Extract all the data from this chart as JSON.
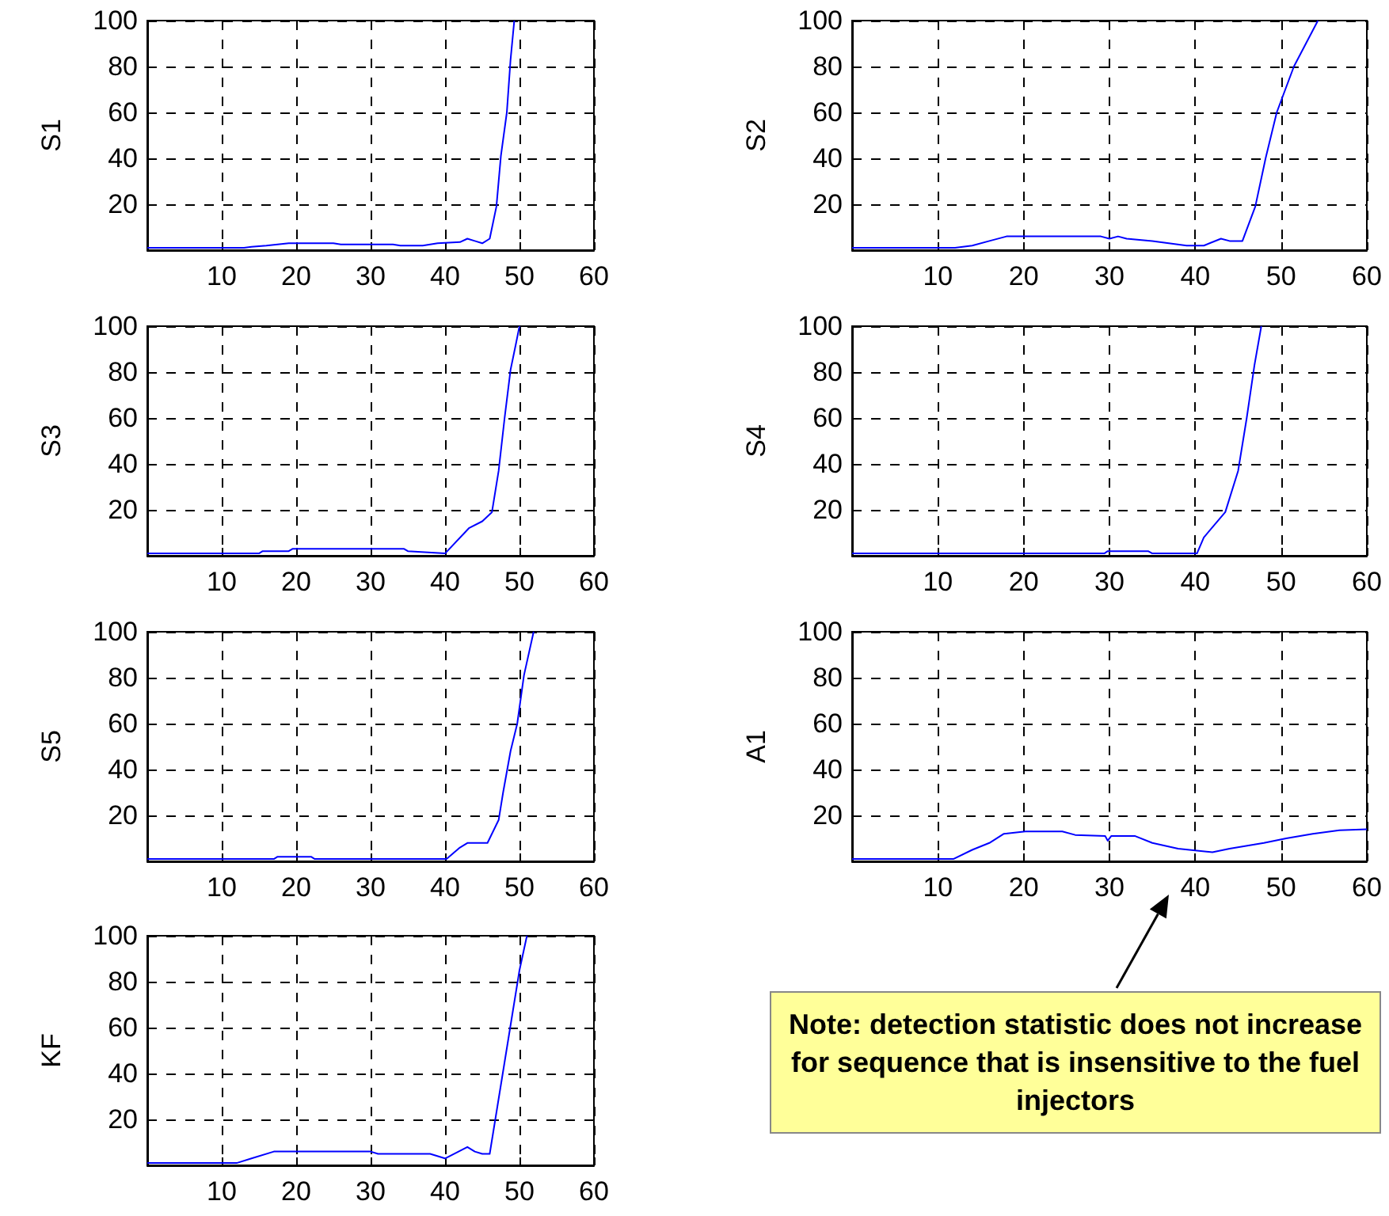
{
  "chart_data": [
    {
      "type": "line",
      "ylabel": "S1",
      "color": "#0000ff",
      "marker": "none",
      "grid": true,
      "xlim": [
        0,
        60
      ],
      "ylim": [
        0,
        100
      ],
      "xticks": [
        10,
        20,
        30,
        40,
        50,
        60
      ],
      "yticks": [
        20,
        40,
        60,
        80,
        100
      ],
      "x": [
        0,
        13,
        14,
        16,
        19,
        25,
        26,
        33,
        34,
        37,
        39,
        42,
        43,
        44,
        45,
        46,
        46.9,
        47.5,
        48.3,
        48.8,
        49.3
      ],
      "values": [
        1,
        1,
        1.5,
        2,
        3,
        3,
        2.5,
        2.5,
        2,
        2,
        3,
        3.5,
        5,
        4,
        3,
        5,
        19,
        41,
        60,
        83,
        100
      ]
    },
    {
      "type": "line",
      "ylabel": "S2",
      "color": "#0000ff",
      "marker": "none",
      "grid": true,
      "xlim": [
        0,
        60
      ],
      "ylim": [
        0,
        100
      ],
      "xticks": [
        10,
        20,
        30,
        40,
        50,
        60
      ],
      "yticks": [
        20,
        40,
        60,
        80,
        100
      ],
      "x": [
        0,
        12,
        14,
        16,
        18,
        29,
        30,
        31,
        32,
        35,
        39,
        41,
        43,
        44,
        45.5,
        47,
        48.2,
        49.5,
        51.5,
        54.3
      ],
      "values": [
        1,
        1,
        2,
        4,
        6,
        6,
        5,
        6,
        5,
        4,
        2,
        2,
        5,
        4,
        4,
        19,
        40,
        60,
        80,
        100
      ]
    },
    {
      "type": "line",
      "ylabel": "S3",
      "color": "#0000ff",
      "marker": "none",
      "grid": true,
      "xlim": [
        0,
        60
      ],
      "ylim": [
        0,
        100
      ],
      "xticks": [
        10,
        20,
        30,
        40,
        50,
        60
      ],
      "yticks": [
        20,
        40,
        60,
        80,
        100
      ],
      "x": [
        0,
        15,
        15.5,
        19,
        19.5,
        34.5,
        35,
        40,
        43.2,
        45,
        46.3,
        47.2,
        48,
        48.8,
        49.5,
        50
      ],
      "values": [
        1,
        1,
        2,
        2,
        3,
        3,
        2,
        1,
        12,
        15,
        19,
        37,
        60,
        81,
        92,
        100
      ]
    },
    {
      "type": "line",
      "ylabel": "S4",
      "color": "#0000ff",
      "marker": "none",
      "grid": true,
      "xlim": [
        0,
        60
      ],
      "ylim": [
        0,
        100
      ],
      "xticks": [
        10,
        20,
        30,
        40,
        50,
        60
      ],
      "yticks": [
        20,
        40,
        60,
        80,
        100
      ],
      "x": [
        0,
        29.4,
        29.8,
        34.5,
        35,
        40.2,
        41,
        43.5,
        45,
        46,
        46.9,
        47.7
      ],
      "values": [
        1,
        1,
        2,
        2,
        1,
        1,
        8,
        19,
        37,
        60,
        83,
        100
      ]
    },
    {
      "type": "line",
      "ylabel": "S5",
      "color": "#0000ff",
      "marker": "none",
      "grid": true,
      "xlim": [
        0,
        60
      ],
      "ylim": [
        0,
        100
      ],
      "xticks": [
        10,
        20,
        30,
        40,
        50,
        60
      ],
      "yticks": [
        20,
        40,
        60,
        80,
        100
      ],
      "x": [
        0,
        17,
        17.5,
        22,
        22.5,
        40.2,
        42,
        43,
        45.7,
        47.2,
        47.8,
        48.8,
        49.7,
        50.6,
        51.9
      ],
      "values": [
        1,
        1,
        2,
        2,
        1,
        1,
        6,
        8,
        8,
        18,
        30,
        48,
        60,
        81,
        100
      ]
    },
    {
      "type": "line",
      "ylabel": "A1",
      "color": "#0000ff",
      "marker": "none",
      "grid": true,
      "xlim": [
        0,
        60
      ],
      "ylim": [
        0,
        100
      ],
      "xticks": [
        10,
        20,
        30,
        40,
        50,
        60
      ],
      "yticks": [
        20,
        40,
        60,
        80,
        100
      ],
      "x": [
        0,
        11.8,
        14,
        16,
        17.7,
        20.2,
        24.5,
        26,
        29.5,
        29.8,
        30.2,
        33,
        35,
        38,
        42,
        44,
        48,
        50.6,
        53.7,
        56.8,
        60
      ],
      "values": [
        1,
        1,
        5,
        8,
        12,
        13,
        13,
        11.5,
        11,
        9,
        11,
        11,
        8,
        5.5,
        4,
        5.5,
        8,
        10,
        12,
        13.5,
        14
      ],
      "annotations": [
        "Note:  detection statistic does not increase for sequence that is insensitive to the fuel injectors"
      ]
    },
    {
      "type": "line",
      "ylabel": "KF",
      "color": "#0000ff",
      "marker": "none",
      "grid": true,
      "xlim": [
        0,
        60
      ],
      "ylim": [
        0,
        100
      ],
      "xticks": [
        10,
        20,
        30,
        40,
        50,
        60
      ],
      "yticks": [
        20,
        40,
        60,
        80,
        100
      ],
      "x": [
        0,
        12,
        14,
        17,
        30,
        31,
        38,
        40,
        43,
        44,
        45,
        46,
        47,
        48,
        49,
        50,
        51
      ],
      "values": [
        1,
        1,
        3,
        6,
        6,
        5,
        5,
        3,
        8,
        6,
        5,
        5,
        25,
        45,
        65,
        85,
        100
      ]
    }
  ]
}
